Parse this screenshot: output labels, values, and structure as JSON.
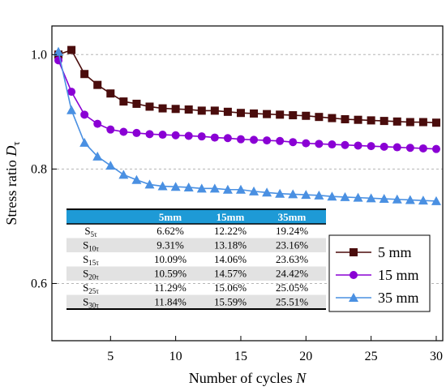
{
  "chart_data": {
    "type": "line",
    "xlabel_prefix": "Number of cycles ",
    "xlabel_var": "N",
    "ylabel_prefix": "Stress ratio ",
    "ylabel_var": "D",
    "ylabel_sub": "τ",
    "xlim": [
      0.5,
      30.5
    ],
    "ylim": [
      0.5,
      1.05
    ],
    "xticks": [
      5,
      10,
      15,
      20,
      25,
      30
    ],
    "yticks": [
      0.6,
      0.8,
      1.0
    ],
    "ytick_labels": [
      "0.6",
      "0.8",
      "1.0"
    ],
    "grid": "horizontal dashed",
    "legend_position": "right, below table level",
    "series": [
      {
        "name": "5 mm",
        "color": "#4a0c0c",
        "marker": "square",
        "x": [
          1,
          2,
          3,
          4,
          5,
          6,
          7,
          8,
          9,
          10,
          11,
          12,
          13,
          14,
          15,
          16,
          17,
          18,
          19,
          20,
          21,
          22,
          23,
          24,
          25,
          26,
          27,
          28,
          29,
          30
        ],
        "y": [
          1.0,
          1.008,
          0.966,
          0.947,
          0.932,
          0.918,
          0.914,
          0.909,
          0.906,
          0.905,
          0.904,
          0.902,
          0.902,
          0.9,
          0.898,
          0.897,
          0.896,
          0.895,
          0.894,
          0.893,
          0.891,
          0.889,
          0.887,
          0.886,
          0.885,
          0.884,
          0.883,
          0.882,
          0.882,
          0.881
        ]
      },
      {
        "name": "15 mm",
        "color": "#8a00d4",
        "marker": "circle",
        "x": [
          1,
          2,
          3,
          4,
          5,
          6,
          7,
          8,
          9,
          10,
          11,
          12,
          13,
          14,
          15,
          16,
          17,
          18,
          19,
          20,
          21,
          22,
          23,
          24,
          25,
          26,
          27,
          28,
          29,
          30
        ],
        "y": [
          0.99,
          0.935,
          0.895,
          0.879,
          0.869,
          0.865,
          0.863,
          0.861,
          0.86,
          0.859,
          0.858,
          0.857,
          0.855,
          0.854,
          0.852,
          0.851,
          0.85,
          0.849,
          0.847,
          0.845,
          0.844,
          0.843,
          0.842,
          0.841,
          0.84,
          0.839,
          0.838,
          0.837,
          0.836,
          0.835
        ]
      },
      {
        "name": "35 mm",
        "color": "#4a90e2",
        "marker": "triangle",
        "x": [
          1,
          2,
          3,
          4,
          5,
          6,
          7,
          8,
          9,
          10,
          11,
          12,
          13,
          14,
          15,
          16,
          17,
          18,
          19,
          20,
          21,
          22,
          23,
          24,
          25,
          26,
          27,
          28,
          29,
          30
        ],
        "y": [
          1.005,
          0.903,
          0.846,
          0.822,
          0.806,
          0.79,
          0.781,
          0.773,
          0.77,
          0.769,
          0.768,
          0.766,
          0.766,
          0.764,
          0.764,
          0.761,
          0.759,
          0.757,
          0.756,
          0.755,
          0.754,
          0.752,
          0.751,
          0.75,
          0.749,
          0.748,
          0.747,
          0.746,
          0.745,
          0.744
        ]
      }
    ],
    "table": {
      "columns": [
        "",
        "5mm",
        "15mm",
        "35mm"
      ],
      "rows": [
        {
          "label": "S",
          "sub": "5τ",
          "values": [
            "6.62%",
            "12.22%",
            "19.24%"
          ]
        },
        {
          "label": "S",
          "sub": "10τ",
          "values": [
            "9.31%",
            "13.18%",
            "23.16%"
          ]
        },
        {
          "label": "S",
          "sub": "15τ",
          "values": [
            "10.09%",
            "14.06%",
            "23.63%"
          ]
        },
        {
          "label": "S",
          "sub": "20τ",
          "values": [
            "10.59%",
            "14.57%",
            "24.42%"
          ]
        },
        {
          "label": "S",
          "sub": "25τ",
          "values": [
            "11.29%",
            "15.06%",
            "25.05%"
          ]
        },
        {
          "label": "S",
          "sub": "30τ",
          "values": [
            "11.84%",
            "15.59%",
            "25.51%"
          ]
        }
      ],
      "header_color": "#1e9ad6"
    }
  }
}
